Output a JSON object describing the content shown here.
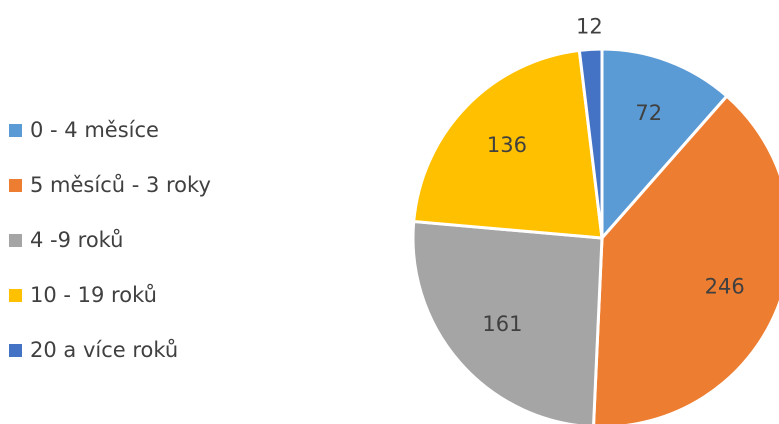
{
  "chart_data": {
    "type": "pie",
    "categories": [
      "0 - 4 měsíce",
      "5 měsíců - 3 roky",
      "4 -9 roků",
      "10 - 19 roků",
      "20 a více roků"
    ],
    "values": [
      72,
      246,
      161,
      136,
      12
    ],
    "colors": [
      "#5b9bd5",
      "#ed7d31",
      "#a5a5a5",
      "#ffc000",
      "#4472c4"
    ],
    "legend": "left"
  }
}
